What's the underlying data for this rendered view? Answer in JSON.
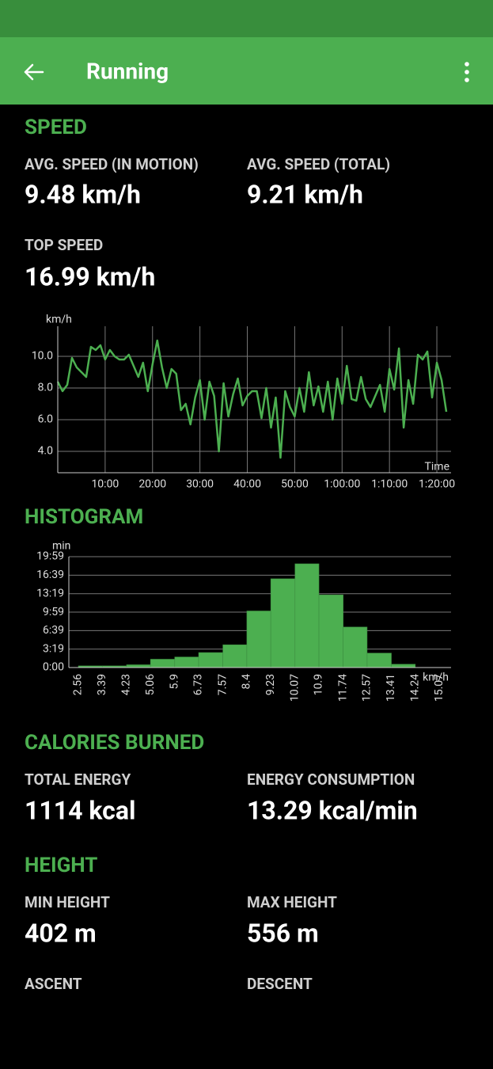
{
  "app_bar": {
    "title": "Running"
  },
  "speed": {
    "heading": "SPEED",
    "stats": [
      {
        "label": "AVG. SPEED (IN MOTION)",
        "value": "9.48 km/h"
      },
      {
        "label": "AVG. SPEED (TOTAL)",
        "value": "9.21 km/h"
      },
      {
        "label": "TOP SPEED",
        "value": "16.99 km/h"
      }
    ]
  },
  "speed_chart": {
    "type": "line",
    "y_label": "km/h",
    "x_label": "Time",
    "color": "#4caf50",
    "grid": true,
    "x": [
      0,
      1,
      2,
      3,
      4,
      5,
      6,
      7,
      8,
      9,
      10,
      11,
      12,
      13,
      14,
      15,
      16,
      17,
      18,
      19,
      20,
      21,
      22,
      23,
      24,
      25,
      26,
      27,
      28,
      29,
      30,
      31,
      32,
      33,
      34,
      35,
      36,
      37,
      38,
      39,
      40,
      41,
      42,
      43,
      44,
      45,
      46,
      47,
      48,
      49,
      50,
      51,
      52,
      53,
      54,
      55,
      56,
      57,
      58,
      59,
      60,
      61,
      62,
      63,
      64,
      65,
      66,
      67,
      68,
      69,
      70,
      71,
      72,
      73,
      74,
      75,
      76,
      77,
      78,
      79,
      80,
      81,
      82
    ],
    "values": [
      8.4,
      7.8,
      8.2,
      9.9,
      9.3,
      9.0,
      8.7,
      10.6,
      10.4,
      10.7,
      9.8,
      10.4,
      10.0,
      9.8,
      9.8,
      10.1,
      9.4,
      8.7,
      9.6,
      7.8,
      9.5,
      11.0,
      9.3,
      8.0,
      9.2,
      8.9,
      6.6,
      7.0,
      5.7,
      7.4,
      8.5,
      6.0,
      8.4,
      7.5,
      4.0,
      8.3,
      6.2,
      7.6,
      8.6,
      6.9,
      7.5,
      7.8,
      7.8,
      6.1,
      8.0,
      5.5,
      7.4,
      3.6,
      7.8,
      6.8,
      6.2,
      8.0,
      6.5,
      9.0,
      6.9,
      8.1,
      6.5,
      8.4,
      6.0,
      8.6,
      7.0,
      9.4,
      7.3,
      7.2,
      8.7,
      7.3,
      6.8,
      7.5,
      8.2,
      6.5,
      9.2,
      7.9,
      10.5,
      5.5,
      8.5,
      7.0,
      10.1,
      9.8,
      10.3,
      7.4,
      9.6,
      8.5,
      6.5
    ],
    "xlim": [
      0,
      83
    ],
    "xticks": [
      {
        "value": 10,
        "label": "10:00"
      },
      {
        "value": 20,
        "label": "20:00"
      },
      {
        "value": 30,
        "label": "30:00"
      },
      {
        "value": 40,
        "label": "40:00"
      },
      {
        "value": 50,
        "label": "50:00"
      },
      {
        "value": 60,
        "label": "1:00:00"
      },
      {
        "value": 70,
        "label": "1:10:00"
      },
      {
        "value": 80,
        "label": "1:20:00"
      }
    ],
    "ylim": [
      2.65,
      11.9
    ],
    "yticks": [
      {
        "value": 4,
        "label": "4.0"
      },
      {
        "value": 6,
        "label": "6.0"
      },
      {
        "value": 8,
        "label": "8.0"
      },
      {
        "value": 10,
        "label": "10.0"
      }
    ]
  },
  "histogram": {
    "heading": "HISTOGRAM",
    "type": "histogram",
    "y_label": "min",
    "x_label": "km/h",
    "color": "#4caf50",
    "grid": true,
    "bins": [
      2.56,
      3.39,
      4.23,
      5.06,
      5.9,
      6.73,
      7.57,
      8.4,
      9.23,
      10.07,
      10.9,
      11.74,
      12.57,
      13.41,
      14.24,
      15.07
    ],
    "values": [
      0.3,
      0.3,
      0.5,
      1.5,
      1.9,
      2.7,
      4.1,
      10.2,
      16.0,
      18.7,
      13.1,
      7.3,
      2.6,
      0.6,
      0
    ],
    "xlim": [
      2.23,
      15.48
    ],
    "ylim": [
      0,
      19.983
    ],
    "yticks": [
      {
        "value": 0,
        "label": "0:00"
      },
      {
        "value": 3.317,
        "label": "3:19"
      },
      {
        "value": 6.65,
        "label": "6:39"
      },
      {
        "value": 9.983,
        "label": "9:59"
      },
      {
        "value": 13.317,
        "label": "13:19"
      },
      {
        "value": 16.65,
        "label": "16:39"
      },
      {
        "value": 19.983,
        "label": "19:59"
      }
    ]
  },
  "calories": {
    "heading": "CALORIES BURNED",
    "stats": [
      {
        "label": "TOTAL ENERGY",
        "value": "1114 kcal"
      },
      {
        "label": "ENERGY CONSUMPTION",
        "value": "13.29 kcal/min"
      }
    ]
  },
  "height": {
    "heading": "HEIGHT",
    "stats": [
      {
        "label": "MIN HEIGHT",
        "value": "402 m"
      },
      {
        "label": "MAX HEIGHT",
        "value": "556 m"
      }
    ],
    "labels": [
      "ASCENT",
      "DESCENT"
    ]
  }
}
